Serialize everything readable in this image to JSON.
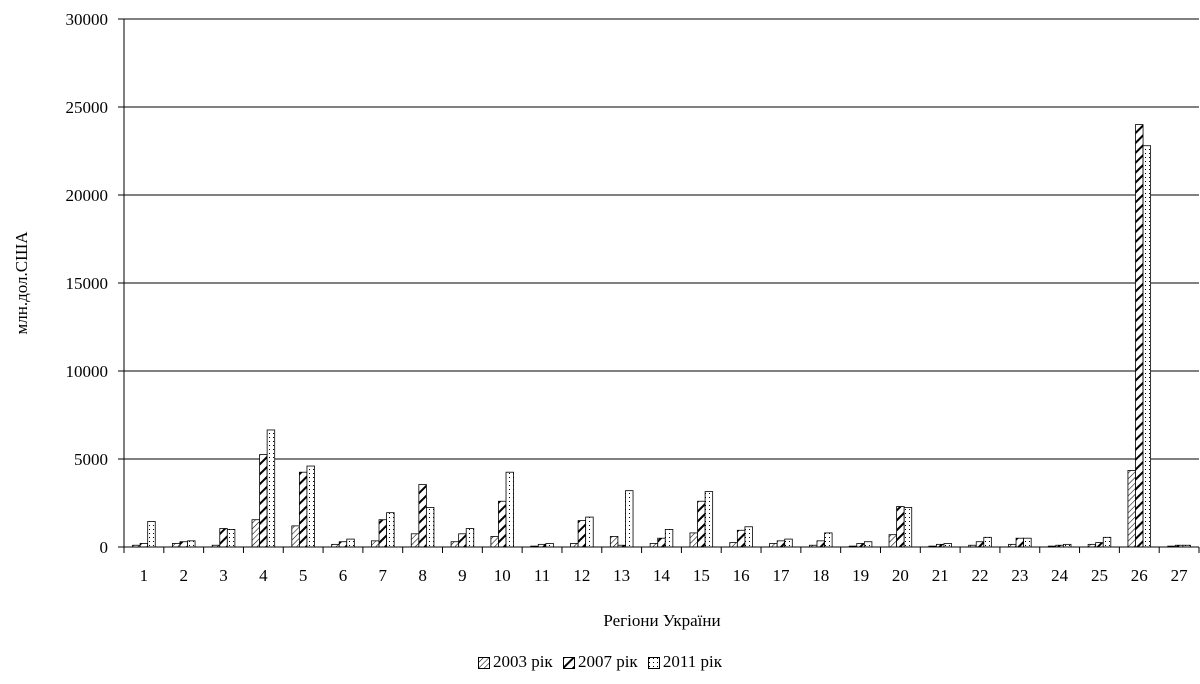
{
  "chart_data": {
    "type": "bar",
    "xlabel": "Регіони України",
    "ylabel": "млн.дол.США",
    "ylim": [
      0,
      30000
    ],
    "yticks": [
      "0",
      "5000",
      "10000",
      "15000",
      "20000",
      "25000",
      "30000"
    ],
    "grid": true,
    "legend_position": "bottom",
    "categories": [
      "1",
      "2",
      "3",
      "4",
      "5",
      "6",
      "7",
      "8",
      "9",
      "10",
      "11",
      "12",
      "13",
      "14",
      "15",
      "16",
      "17",
      "18",
      "19",
      "20",
      "21",
      "22",
      "23",
      "24",
      "25",
      "26",
      "27"
    ],
    "series": [
      {
        "name": "2003 рік",
        "pattern": "diagonal-thin",
        "values": [
          100,
          200,
          100,
          1550,
          1200,
          150,
          350,
          750,
          300,
          600,
          50,
          200,
          600,
          200,
          800,
          250,
          200,
          100,
          50,
          700,
          50,
          100,
          150,
          50,
          150,
          4350,
          50
        ]
      },
      {
        "name": "2007 рік",
        "pattern": "diagonal-thick",
        "values": [
          200,
          300,
          1050,
          5250,
          4250,
          300,
          1550,
          3550,
          750,
          2600,
          150,
          1500,
          100,
          500,
          2600,
          950,
          350,
          350,
          200,
          2300,
          150,
          300,
          500,
          100,
          250,
          24000,
          100
        ]
      },
      {
        "name": "2011 рік",
        "pattern": "dotted",
        "values": [
          1450,
          350,
          1000,
          6650,
          4600,
          450,
          1950,
          2250,
          1050,
          4250,
          200,
          1700,
          3200,
          1000,
          3150,
          1150,
          450,
          800,
          300,
          2250,
          200,
          550,
          500,
          150,
          550,
          22800,
          100
        ]
      }
    ]
  }
}
